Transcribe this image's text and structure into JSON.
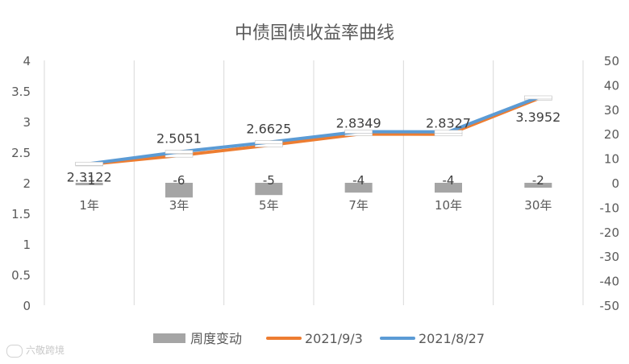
{
  "chart_data": {
    "type": "bar+line",
    "title": "中债国债收益率曲线",
    "categories": [
      "1年",
      "3年",
      "5年",
      "7年",
      "10年",
      "30年"
    ],
    "y_left": {
      "ticks": [
        "4",
        "3.5",
        "3",
        "2.5",
        "2",
        "1.5",
        "1",
        "0.5",
        "0"
      ],
      "ylim": [
        0,
        4
      ]
    },
    "y_right": {
      "ticks": [
        "50",
        "40",
        "30",
        "20",
        "10",
        "0",
        "-10",
        "-20",
        "-30",
        "-40",
        "-50"
      ],
      "ylim": [
        -50,
        50
      ]
    },
    "grid": "vertical",
    "legend_position": "bottom",
    "series": [
      {
        "name": "周度变动",
        "kind": "bar",
        "axis": "right",
        "color": "#a5a5a5",
        "values": [
          -1,
          -6,
          -5,
          -4,
          -4,
          -2
        ],
        "labels": [
          "-1",
          "-6",
          "-5",
          "-4",
          "-4",
          "-2"
        ]
      },
      {
        "name": "2021/9/3",
        "kind": "line",
        "axis": "left",
        "color": "#ed7d31",
        "values": [
          2.3022,
          2.4451,
          2.6125,
          2.7949,
          2.7927,
          3.3752
        ]
      },
      {
        "name": "2021/8/27",
        "kind": "line",
        "axis": "left",
        "color": "#5b9bd5",
        "values": [
          2.3122,
          2.5051,
          2.6625,
          2.8349,
          2.8327,
          3.3952
        ],
        "labels": [
          "2.3122",
          "2.5051",
          "2.6625",
          "2.8349",
          "2.8327",
          "3.3952"
        ]
      }
    ]
  },
  "watermark": {
    "text": "六敬跨境"
  }
}
